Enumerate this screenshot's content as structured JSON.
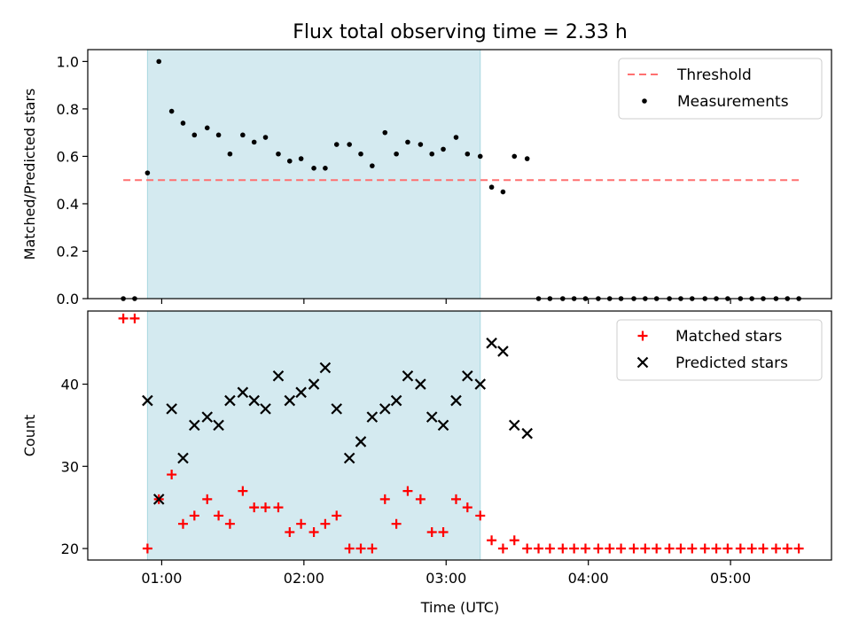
{
  "chart_data": {
    "title": "Flux total observing time = 2.33 h",
    "xlabel": "Time (UTC)",
    "x_unit": "hours UTC",
    "x_ticks": [
      {
        "value": 1,
        "label": "01:00"
      },
      {
        "value": 2,
        "label": "02:00"
      },
      {
        "value": 3,
        "label": "03:00"
      },
      {
        "value": 4,
        "label": "04:00"
      },
      {
        "value": 5,
        "label": "05:00"
      }
    ],
    "xlim": [
      0.48,
      5.71
    ],
    "shaded_interval": {
      "start": 0.9,
      "end": 3.24,
      "color": "#d4eaf0",
      "edge_color": "#a9d7e0"
    },
    "panels": [
      {
        "type": "scatter",
        "ylabel": "Matched/Predicted stars",
        "ylim": [
          0.0,
          1.05
        ],
        "y_ticks": [
          "0.0",
          "0.2",
          "0.4",
          "0.6",
          "0.8",
          "1.0"
        ],
        "legend_position": "top-right",
        "series": [
          {
            "name": "Threshold",
            "kind": "dashed-line",
            "color": "#ff7070",
            "x": [
              0.73,
              5.48
            ],
            "y": [
              0.5,
              0.5
            ]
          },
          {
            "name": "Measurements",
            "kind": "dot",
            "color": "#000000",
            "x": [
              0.73,
              0.81,
              0.9,
              0.98,
              1.07,
              1.15,
              1.23,
              1.32,
              1.4,
              1.48,
              1.57,
              1.65,
              1.73,
              1.82,
              1.9,
              1.98,
              2.07,
              2.15,
              2.23,
              2.32,
              2.4,
              2.48,
              2.57,
              2.65,
              2.73,
              2.82,
              2.9,
              2.98,
              3.07,
              3.15,
              3.24,
              3.32,
              3.4,
              3.48,
              3.57,
              3.65,
              3.73,
              3.82,
              3.9,
              3.98,
              4.07,
              4.15,
              4.23,
              4.32,
              4.4,
              4.48,
              4.57,
              4.65,
              4.73,
              4.82,
              4.9,
              4.98,
              5.07,
              5.15,
              5.23,
              5.32,
              5.4,
              5.48
            ],
            "y": [
              0.0,
              0.0,
              0.53,
              1.0,
              0.79,
              0.74,
              0.69,
              0.72,
              0.69,
              0.61,
              0.69,
              0.66,
              0.68,
              0.61,
              0.58,
              0.59,
              0.55,
              0.55,
              0.65,
              0.65,
              0.61,
              0.56,
              0.7,
              0.61,
              0.66,
              0.65,
              0.61,
              0.63,
              0.68,
              0.61,
              0.6,
              0.47,
              0.45,
              0.6,
              0.59,
              0.0,
              0.0,
              0.0,
              0.0,
              0.0,
              0.0,
              0.0,
              0.0,
              0.0,
              0.0,
              0.0,
              0.0,
              0.0,
              0.0,
              0.0,
              0.0,
              0.0,
              0.0,
              0.0,
              0.0,
              0.0,
              0.0,
              0.0
            ]
          }
        ]
      },
      {
        "type": "scatter",
        "ylabel": "Count",
        "ylim": [
          18.6,
          48.9
        ],
        "y_ticks": [
          "20",
          "30",
          "40"
        ],
        "legend_position": "top-right",
        "series": [
          {
            "name": "Matched stars",
            "kind": "plus",
            "color": "#ff0000",
            "x": [
              0.73,
              0.81,
              0.9,
              0.98,
              1.07,
              1.15,
              1.23,
              1.32,
              1.4,
              1.48,
              1.57,
              1.65,
              1.73,
              1.82,
              1.9,
              1.98,
              2.07,
              2.15,
              2.23,
              2.32,
              2.4,
              2.48,
              2.57,
              2.65,
              2.73,
              2.82,
              2.9,
              2.98,
              3.07,
              3.15,
              3.24,
              3.32,
              3.4,
              3.48,
              3.57,
              3.65,
              3.73,
              3.82,
              3.9,
              3.98,
              4.07,
              4.15,
              4.23,
              4.32,
              4.4,
              4.48,
              4.57,
              4.65,
              4.73,
              4.82,
              4.9,
              4.98,
              5.07,
              5.15,
              5.23,
              5.32,
              5.4,
              5.48
            ],
            "y": [
              48,
              48,
              20,
              26,
              29,
              23,
              24,
              26,
              24,
              23,
              27,
              25,
              25,
              25,
              22,
              23,
              22,
              23,
              24,
              20,
              20,
              20,
              26,
              23,
              27,
              26,
              22,
              22,
              26,
              25,
              24,
              21,
              20,
              21,
              20,
              20,
              20,
              20,
              20,
              20,
              20,
              20,
              20,
              20,
              20,
              20,
              20,
              20,
              20,
              20,
              20,
              20,
              20,
              20,
              20,
              20,
              20,
              20
            ]
          },
          {
            "name": "Predicted stars",
            "kind": "x",
            "color": "#000000",
            "x": [
              0.9,
              0.98,
              1.07,
              1.15,
              1.23,
              1.32,
              1.4,
              1.48,
              1.57,
              1.65,
              1.73,
              1.82,
              1.9,
              1.98,
              2.07,
              2.15,
              2.23,
              2.32,
              2.4,
              2.48,
              2.57,
              2.65,
              2.73,
              2.82,
              2.9,
              2.98,
              3.07,
              3.15,
              3.24,
              3.32,
              3.4,
              3.48,
              3.57
            ],
            "y": [
              38,
              26,
              37,
              31,
              35,
              36,
              35,
              38,
              39,
              38,
              37,
              41,
              38,
              39,
              40,
              42,
              37,
              31,
              33,
              36,
              37,
              38,
              41,
              40,
              36,
              35,
              38,
              41,
              40,
              45,
              44,
              35,
              34
            ]
          }
        ]
      }
    ]
  }
}
